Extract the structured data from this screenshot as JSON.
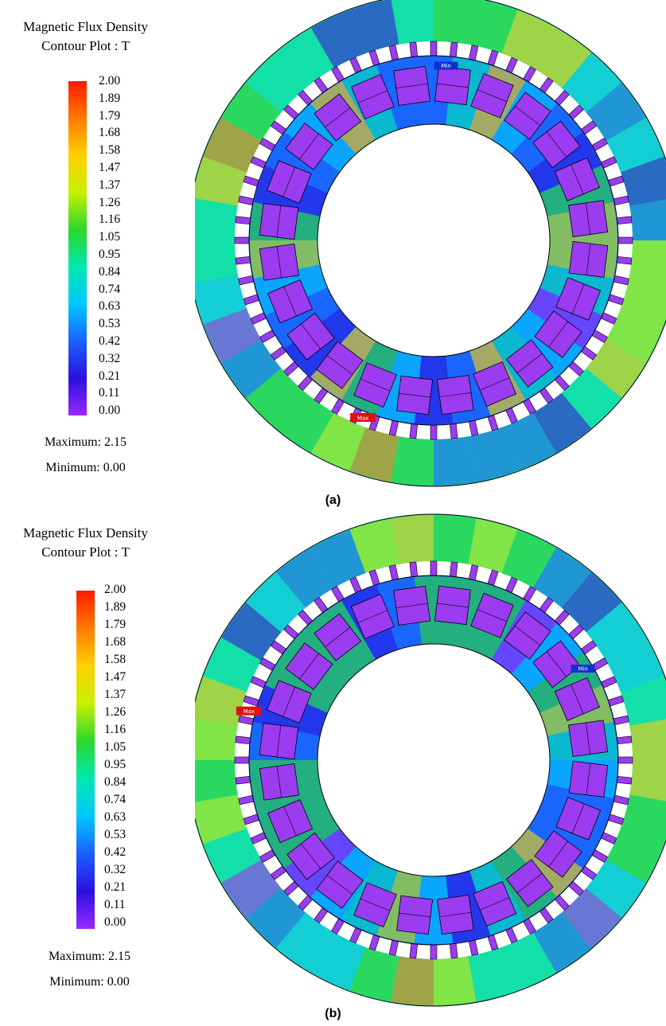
{
  "panels": [
    {
      "legend": {
        "title_line1": "Magnetic Flux Density",
        "title_line2": "Contour Plot : T",
        "ticks": [
          "2.00",
          "1.89",
          "1.79",
          "1.68",
          "1.58",
          "1.47",
          "1.37",
          "1.26",
          "1.16",
          "1.05",
          "0.95",
          "0.84",
          "0.74",
          "0.63",
          "0.53",
          "0.42",
          "0.32",
          "0.21",
          "0.11",
          "0.00"
        ]
      },
      "maximum_label": "Maximum: 2.15",
      "minimum_label": "Minimum: 0.00",
      "max_marker": "Max",
      "min_marker": "Min",
      "caption": "(a)"
    },
    {
      "legend": {
        "title_line1": "Magnetic Flux Density",
        "title_line2": "Contour Plot : T",
        "ticks": [
          "2.00",
          "1.89",
          "1.79",
          "1.68",
          "1.58",
          "1.47",
          "1.37",
          "1.26",
          "1.16",
          "1.05",
          "0.95",
          "0.84",
          "0.74",
          "0.63",
          "0.53",
          "0.42",
          "0.32",
          "0.21",
          "0.11",
          "0.00"
        ]
      },
      "maximum_label": "Maximum: 2.15",
      "minimum_label": "Minimum: 0.00",
      "max_marker": "Max",
      "min_marker": "Min",
      "caption": "(b)"
    }
  ],
  "colors": {
    "scale": [
      "#ff1a00",
      "#ff7a00",
      "#ffd000",
      "#c8f000",
      "#2ad82a",
      "#00e8b0",
      "#00c8ff",
      "#1a60ff",
      "#2a10e0",
      "#9a28ff"
    ],
    "slot": "#9b3cf0",
    "background": "#ffffff"
  }
}
